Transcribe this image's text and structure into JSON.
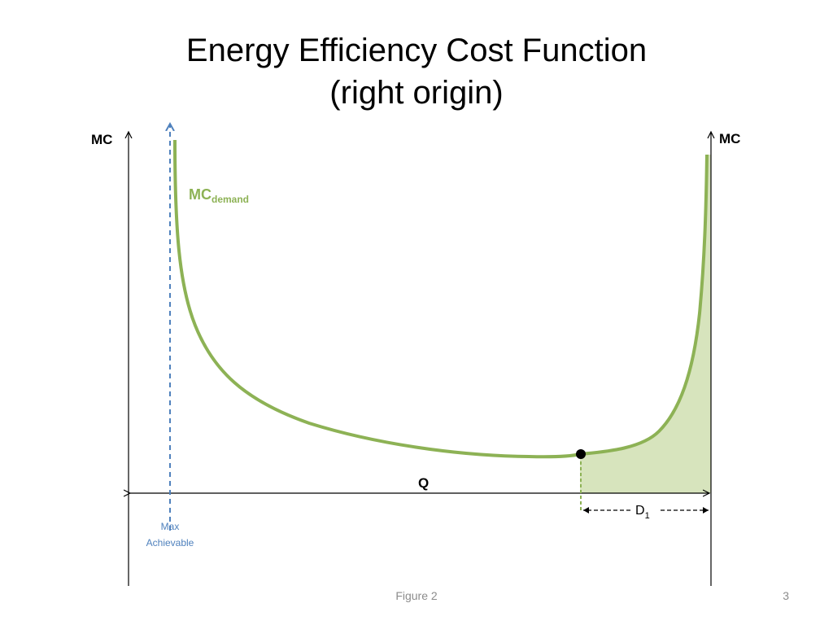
{
  "slide": {
    "title_line1": "Energy Efficiency Cost Function",
    "title_line2": "(right origin)",
    "footer_caption": "Figure 2",
    "page_number": "3"
  },
  "diagram": {
    "left_axis_label": "MC",
    "right_axis_label": "MC",
    "curve_label_main": "MC",
    "curve_label_sub": "demand",
    "quantity_label": "Q",
    "max_label_line1": "Max",
    "max_label_line2": "Achievable",
    "d_label_main": "D",
    "d_label_sub": "1"
  },
  "colors": {
    "curve": "#8db255",
    "shaded_area": "#d7e4bd",
    "max_achievable": "#4f81bd",
    "axes": "#000000"
  }
}
